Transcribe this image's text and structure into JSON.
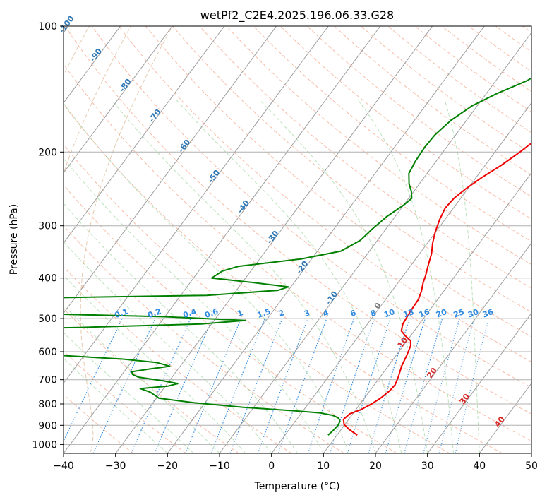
{
  "chart_data": {
    "type": "line",
    "title": "wetPf2_C2E4.2025.196.06.33.G28",
    "xlabel": "Temperature (°C)",
    "ylabel": "Pressure (hPa)",
    "xlim": [
      -40,
      50
    ],
    "ylim": [
      1050,
      100
    ],
    "yscale": "log",
    "x_ticks": [
      "−40",
      "−30",
      "−20",
      "−10",
      "0",
      "10",
      "20",
      "30",
      "40",
      "50"
    ],
    "y_ticks": [
      {
        "p": 100,
        "label": "100"
      },
      {
        "p": 200,
        "label": "200"
      },
      {
        "p": 300,
        "label": "300"
      },
      {
        "p": 400,
        "label": "400"
      },
      {
        "p": 500,
        "label": "500"
      },
      {
        "p": 600,
        "label": "600"
      },
      {
        "p": 700,
        "label": "700"
      },
      {
        "p": 800,
        "label": "800"
      },
      {
        "p": 900,
        "label": "900"
      },
      {
        "p": 1000,
        "label": "1000"
      }
    ],
    "grid": true,
    "isotherm_labels": [
      "-100",
      "-90",
      "-80",
      "-70",
      "-60",
      "-50",
      "-40",
      "-30",
      "-20",
      "-10",
      "0",
      "10",
      "20",
      "30",
      "40"
    ],
    "mixing_ratio_labels": [
      "0.1",
      "0.2",
      "0.4",
      "0.6",
      "1",
      "1.5",
      "2",
      "3",
      "4",
      "6",
      "8",
      "10",
      "13",
      "16",
      "20",
      "25",
      "30",
      "36"
    ],
    "series": [
      {
        "role": "temperature",
        "color": "#ee0000",
        "points": [
          [
            13.9,
            950
          ],
          [
            11.5,
            920
          ],
          [
            9.8,
            895
          ],
          [
            9.0,
            870
          ],
          [
            9.4,
            845
          ],
          [
            11.0,
            825
          ],
          [
            12.2,
            800
          ],
          [
            13.1,
            775
          ],
          [
            13.8,
            745
          ],
          [
            14.0,
            720
          ],
          [
            13.5,
            690
          ],
          [
            12.6,
            650
          ],
          [
            12.0,
            610
          ],
          [
            11.4,
            580
          ],
          [
            10.7,
            565
          ],
          [
            9.0,
            550
          ],
          [
            7.5,
            535
          ],
          [
            6.8,
            515
          ],
          [
            6.6,
            495
          ],
          [
            6.4,
            470
          ],
          [
            6.3,
            450
          ],
          [
            5.7,
            430
          ],
          [
            4.8,
            410
          ],
          [
            4.3,
            395
          ],
          [
            3.4,
            375
          ],
          [
            2.3,
            350
          ],
          [
            1.0,
            330
          ],
          [
            -0.1,
            310
          ],
          [
            -1.0,
            290
          ],
          [
            -1.6,
            272
          ],
          [
            -1.3,
            258
          ],
          [
            -0.4,
            245
          ],
          [
            1.1,
            230
          ],
          [
            3.1,
            215
          ],
          [
            4.8,
            200
          ],
          [
            6.3,
            185
          ],
          [
            7.7,
            170
          ],
          [
            8.8,
            155
          ],
          [
            9.2,
            143
          ],
          [
            9.3,
            130
          ],
          [
            9.8,
            120
          ],
          [
            11.7,
            112
          ],
          [
            14.2,
            106
          ],
          [
            16.3,
            100
          ]
        ]
      },
      {
        "role": "dewpoint",
        "color": "#008000",
        "points": [
          [
            8.3,
            950
          ],
          [
            8.6,
            925
          ],
          [
            8.8,
            900
          ],
          [
            8.6,
            880
          ],
          [
            7.9,
            865
          ],
          [
            6.4,
            852
          ],
          [
            3.5,
            840
          ],
          [
            -2.0,
            830
          ],
          [
            -12.0,
            815
          ],
          [
            -22.0,
            795
          ],
          [
            -29.5,
            775
          ],
          [
            -32.0,
            750
          ],
          [
            -34.5,
            735
          ],
          [
            -29.5,
            725
          ],
          [
            -28.0,
            715
          ],
          [
            -31.0,
            705
          ],
          [
            -36.5,
            690
          ],
          [
            -38.0,
            680
          ],
          [
            -38.5,
            670
          ],
          [
            -35.5,
            660
          ],
          [
            -32.0,
            650
          ],
          [
            -35.0,
            637
          ],
          [
            -42.0,
            625
          ],
          [
            -55.0,
            612
          ],
          [
            -70.0,
            595
          ],
          [
            -85.0,
            575
          ],
          [
            -95.0,
            552
          ],
          [
            -90.0,
            535
          ],
          [
            -55.0,
            525
          ],
          [
            -32.0,
            515
          ],
          [
            -24.0,
            505
          ],
          [
            -40.0,
            495
          ],
          [
            -85.0,
            480
          ],
          [
            -110.0,
            462
          ],
          [
            -75.0,
            448
          ],
          [
            -35.0,
            440
          ],
          [
            -22.0,
            428
          ],
          [
            -20.5,
            420
          ],
          [
            -28.0,
            410
          ],
          [
            -36.5,
            400
          ],
          [
            -35.5,
            385
          ],
          [
            -33.0,
            375
          ],
          [
            -22.0,
            360
          ],
          [
            -15.5,
            345
          ],
          [
            -13.3,
            325
          ],
          [
            -12.6,
            305
          ],
          [
            -11.6,
            285
          ],
          [
            -10.0,
            268
          ],
          [
            -9.4,
            258
          ],
          [
            -10.5,
            248
          ],
          [
            -12.0,
            238
          ],
          [
            -13.5,
            225
          ],
          [
            -14.0,
            210
          ],
          [
            -14.2,
            195
          ],
          [
            -14.0,
            182
          ],
          [
            -13.0,
            168
          ],
          [
            -11.0,
            155
          ],
          [
            -8.0,
            145
          ],
          [
            -4.0,
            135
          ],
          [
            -1.5,
            125
          ],
          [
            -1.2,
            115
          ],
          [
            -0.5,
            108
          ],
          [
            0.8,
            100
          ]
        ]
      }
    ]
  }
}
